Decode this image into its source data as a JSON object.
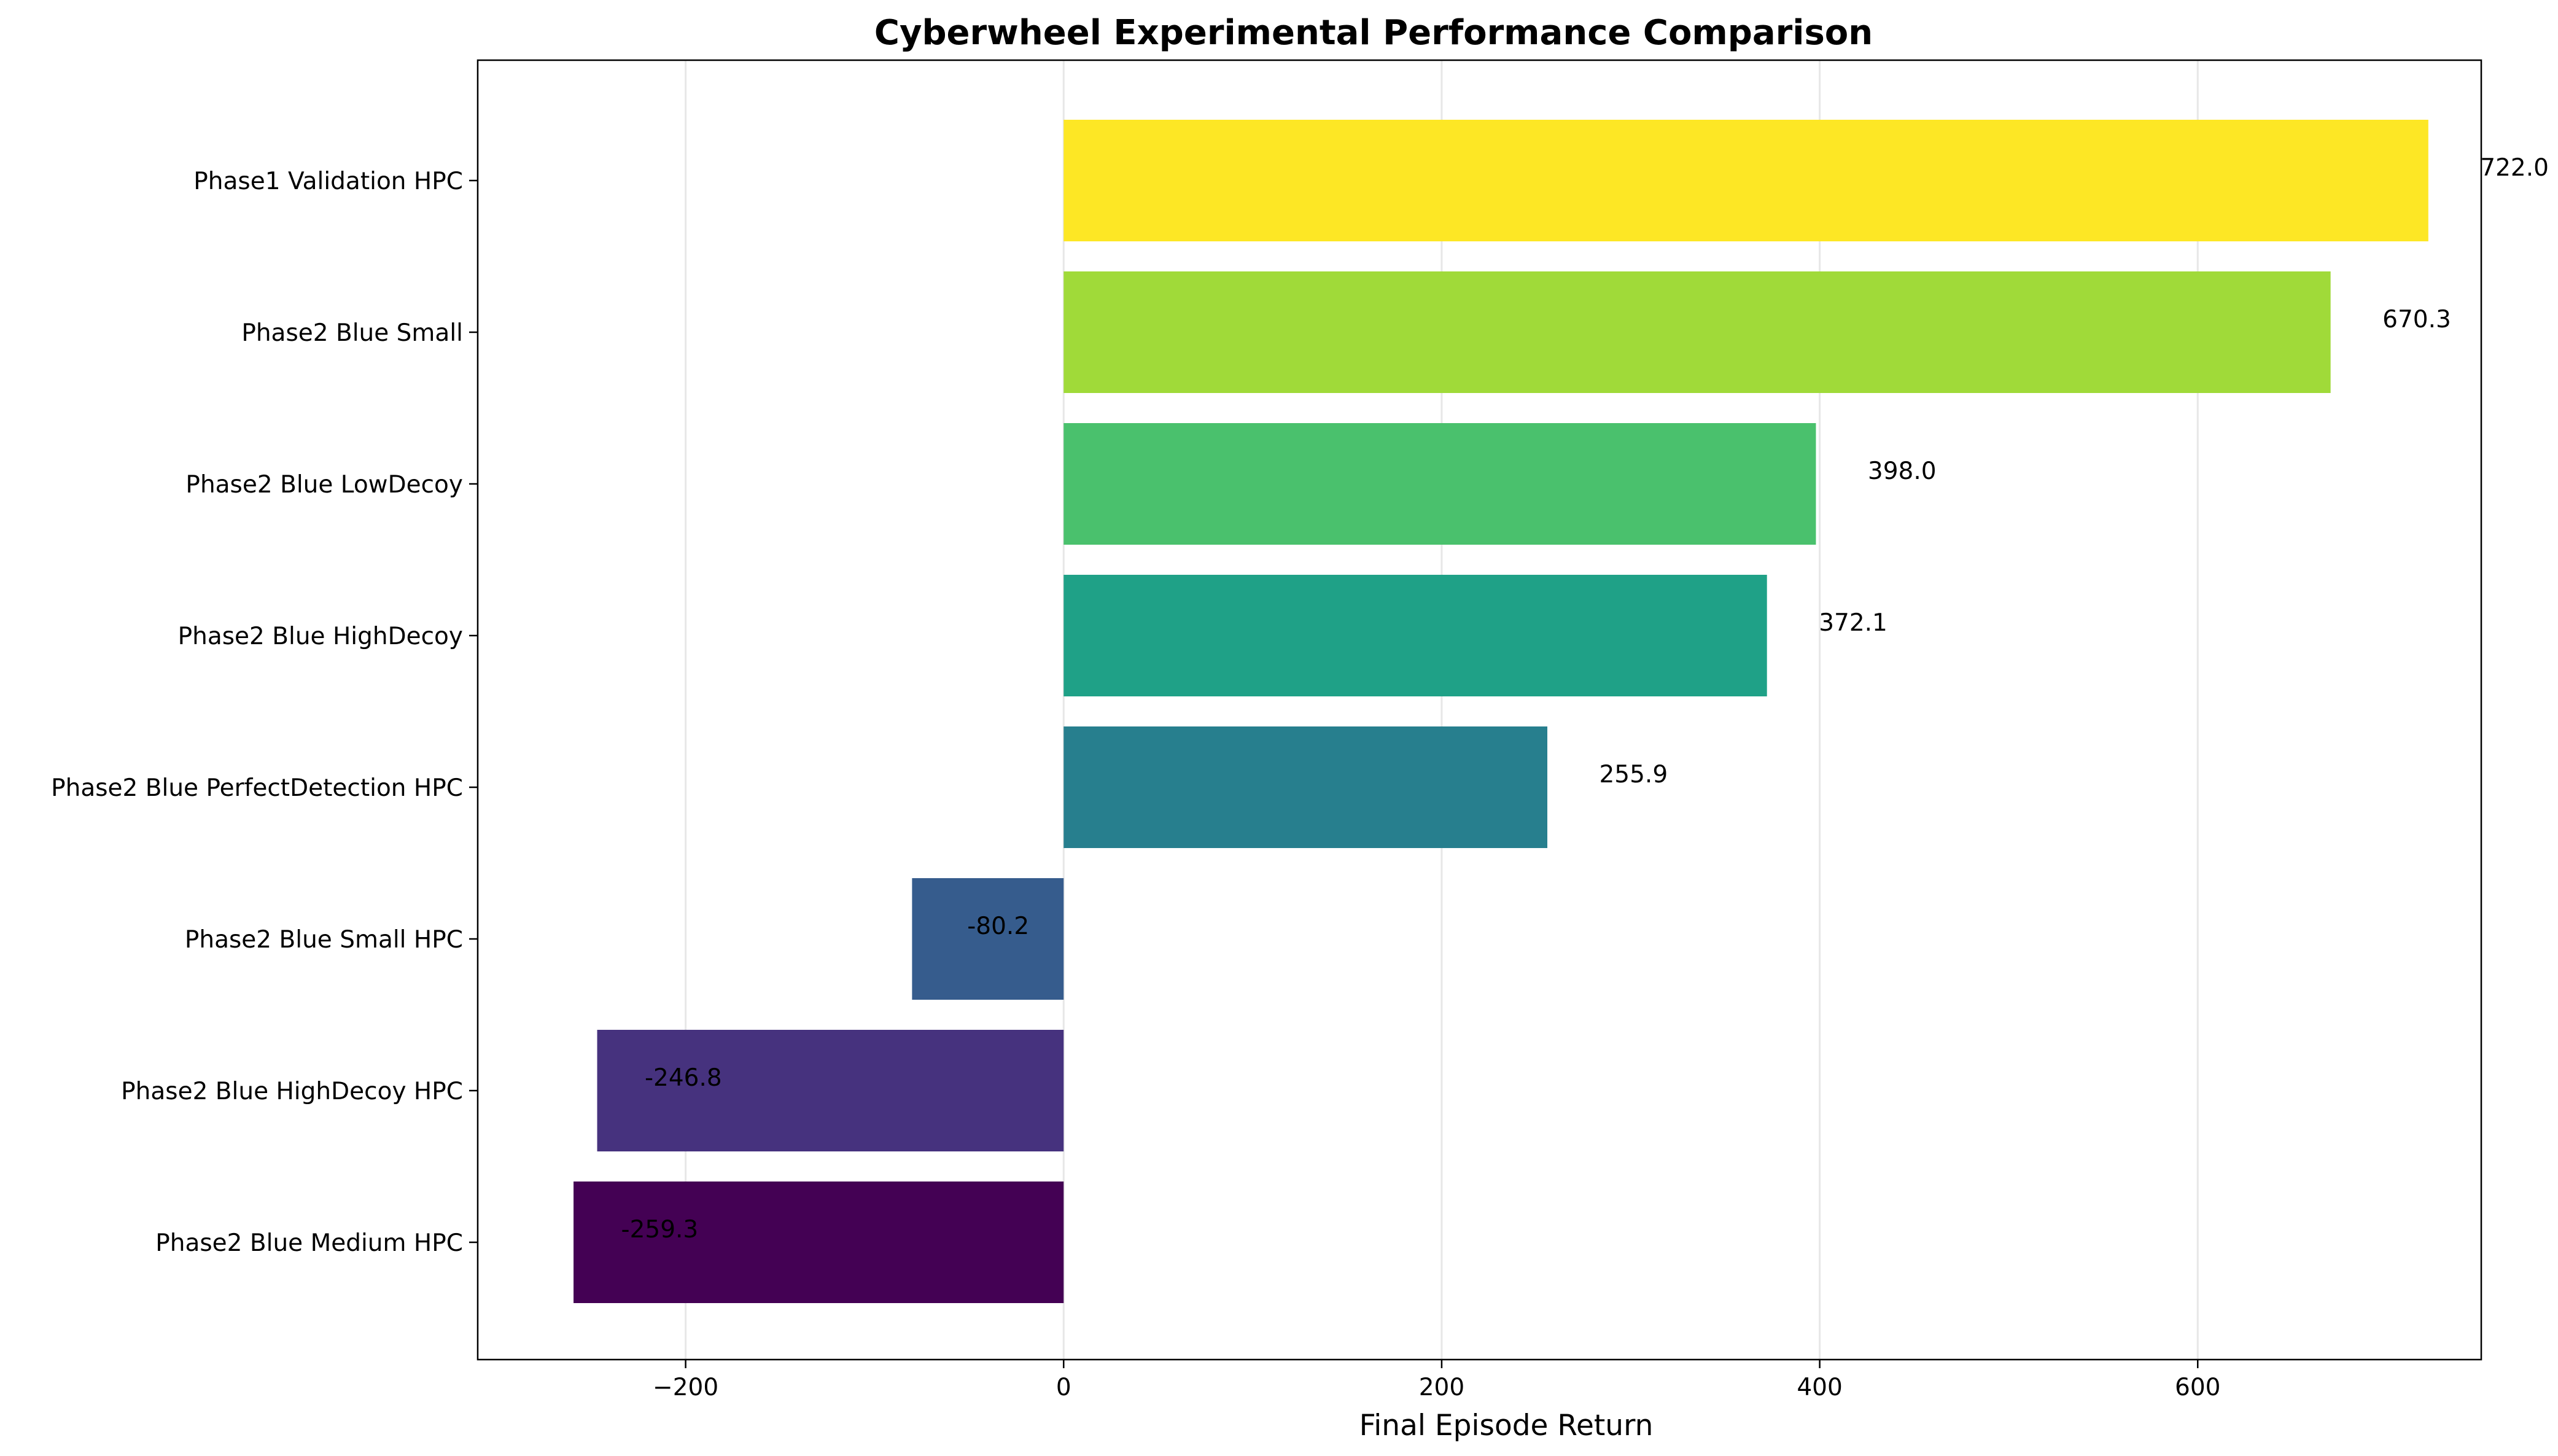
{
  "chart_data": {
    "type": "bar",
    "orientation": "horizontal",
    "title": "Cyberwheel Experimental Performance Comparison",
    "xlabel": "Final Episode Return",
    "ylabel": "",
    "xlim": [
      -310,
      750
    ],
    "xticks": [
      -200,
      0,
      200,
      400,
      600
    ],
    "xtick_labels": [
      "−200",
      "0",
      "200",
      "400",
      "600"
    ],
    "grid": "x-axis, light gray",
    "categories": [
      "Phase1 Validation HPC",
      "Phase2 Blue Small",
      "Phase2 Blue LowDecoy",
      "Phase2 Blue HighDecoy",
      "Phase2 Blue PerfectDetection HPC",
      "Phase2 Blue Small HPC",
      "Phase2 Blue HighDecoy HPC",
      "Phase2 Blue Medium HPC"
    ],
    "values": [
      722.0,
      670.3,
      398.0,
      372.1,
      255.9,
      -80.2,
      -246.8,
      -259.3
    ],
    "data_labels": [
      "722.0",
      "670.3",
      "398.0",
      "372.1",
      "255.9",
      "-80.2",
      "-246.8",
      "-259.3"
    ],
    "colors": [
      "#fde725",
      "#a0da39",
      "#4ac16d",
      "#1fa187",
      "#277f8e",
      "#365c8d",
      "#46327e",
      "#440154"
    ]
  }
}
